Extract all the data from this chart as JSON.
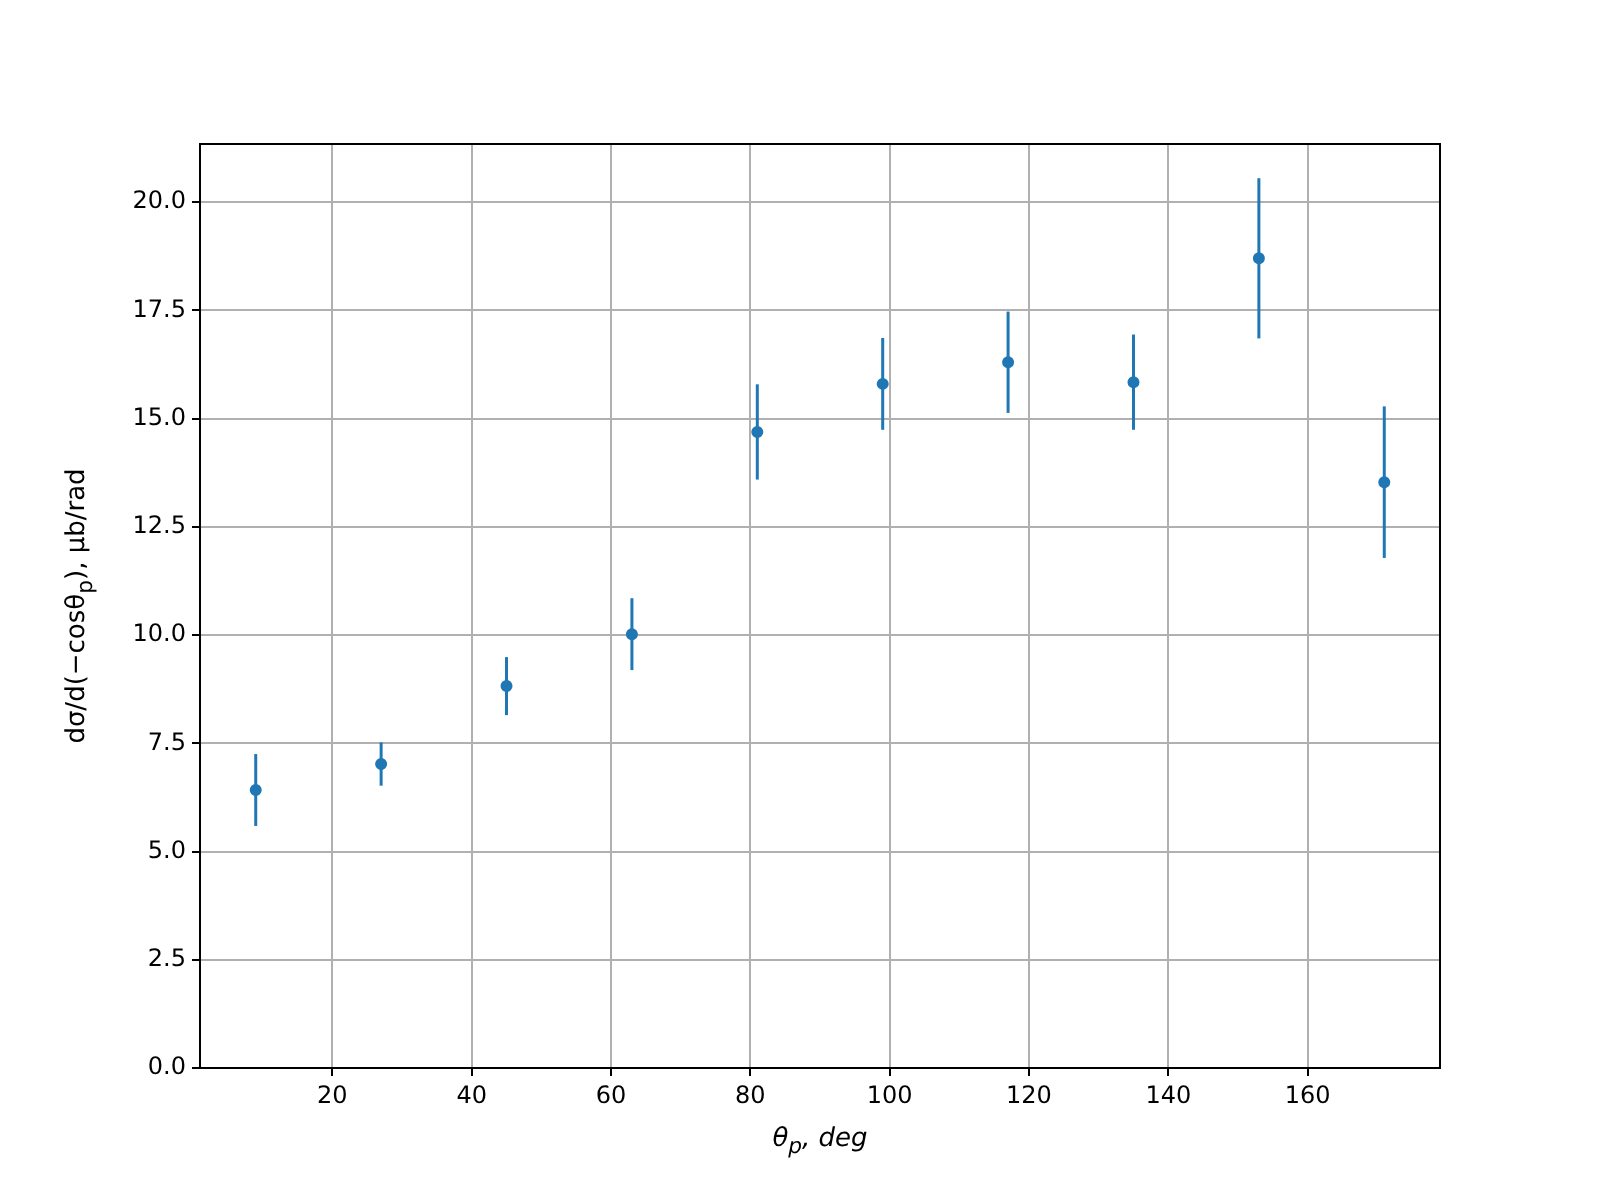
{
  "chart_data": {
    "type": "scatter",
    "xlabel": "θ$_{p}$, deg",
    "ylabel": "dσ/d(−cosθ$_{p}$), μb/rad",
    "x": [
      9,
      27,
      45,
      63,
      81,
      99,
      117,
      135,
      153,
      171
    ],
    "series": [
      {
        "color": "#1f77b4",
        "values": [
          6.42,
          7.02,
          8.82,
          10.02,
          14.69,
          15.8,
          16.3,
          15.84,
          18.7,
          13.53
        ],
        "errors": [
          0.83,
          0.5,
          0.67,
          0.83,
          1.1,
          1.06,
          1.17,
          1.1,
          1.85,
          1.75
        ]
      }
    ],
    "xlim": [
      1,
      179
    ],
    "xticks": [
      20,
      40,
      60,
      80,
      100,
      120,
      140,
      160
    ],
    "ylim": [
      0,
      21.34
    ],
    "yticks": [
      {
        "value": 0,
        "label": "0.0"
      },
      {
        "value": 2.5,
        "label": "2.5"
      },
      {
        "value": 5,
        "label": "5.0"
      },
      {
        "value": 7.5,
        "label": "7.5"
      },
      {
        "value": 10,
        "label": "10.0"
      },
      {
        "value": 12.5,
        "label": "12.5"
      },
      {
        "value": 15,
        "label": "15.0"
      },
      {
        "value": 17.5,
        "label": "17.5"
      },
      {
        "value": 20,
        "label": "20.0"
      }
    ],
    "grid": true,
    "marker": "circle"
  }
}
